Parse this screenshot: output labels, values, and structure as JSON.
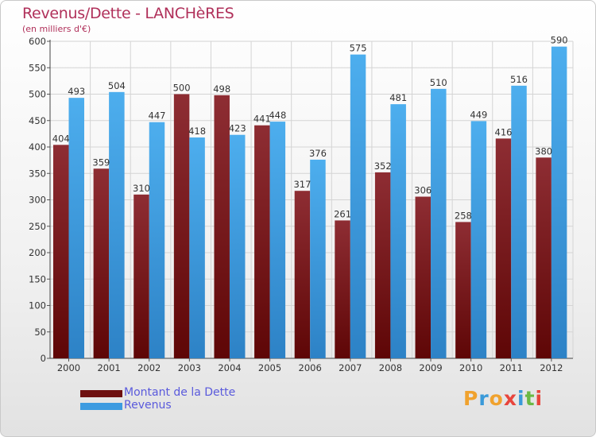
{
  "title": "Revenus/Dette - LANCHèRES",
  "subtitle": "(en milliers d'€)",
  "logo": {
    "text": "Proxiti",
    "colors": [
      "#f0a22e",
      "#3a9ad9",
      "#f0a22e",
      "#e8453c",
      "#3a9ad9",
      "#6bb944",
      "#e8453c"
    ]
  },
  "chart_data": {
    "type": "bar",
    "categories": [
      "2000",
      "2001",
      "2002",
      "2003",
      "2004",
      "2005",
      "2006",
      "2007",
      "2008",
      "2009",
      "2010",
      "2011",
      "2012"
    ],
    "series": [
      {
        "name": "Montant de la Dette",
        "color": "#7a1c1c",
        "values": [
          404,
          359,
          310,
          500,
          498,
          441,
          317,
          261,
          352,
          306,
          258,
          416,
          380
        ]
      },
      {
        "name": "Revenus",
        "color": "#3d9be0",
        "values": [
          493,
          504,
          447,
          418,
          423,
          448,
          376,
          575,
          481,
          510,
          449,
          516,
          590
        ]
      }
    ],
    "ylim": [
      0,
      600
    ],
    "yticks": [
      0,
      50,
      100,
      150,
      200,
      250,
      300,
      350,
      400,
      450,
      500,
      550,
      600
    ],
    "grid": true,
    "legend": "bottom-left"
  }
}
